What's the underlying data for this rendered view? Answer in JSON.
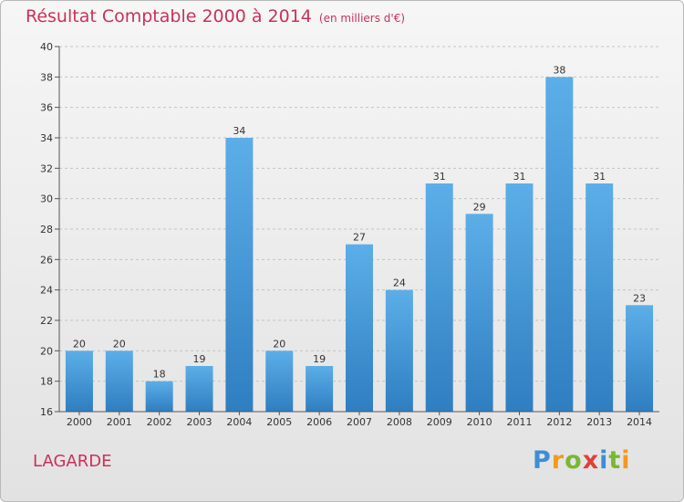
{
  "title": "Résultat Comptable 2000 à 2014",
  "subtitle": "(en milliers d'€)",
  "commune": "LAGARDE",
  "logo": {
    "letters": [
      "P",
      "r",
      "o",
      "x",
      "i",
      "t",
      "i"
    ],
    "colors": [
      "#3a8fd6",
      "#f29a1f",
      "#7ab830",
      "#e0403a",
      "#3a8fd6",
      "#7ab830",
      "#f29a1f"
    ]
  },
  "chart_data": {
    "type": "bar",
    "categories": [
      "2000",
      "2001",
      "2002",
      "2003",
      "2004",
      "2005",
      "2006",
      "2007",
      "2008",
      "2009",
      "2010",
      "2011",
      "2012",
      "2013",
      "2014"
    ],
    "values": [
      20,
      20,
      18,
      19,
      34,
      20,
      19,
      27,
      24,
      31,
      29,
      31,
      38,
      31,
      23
    ],
    "ylim": [
      16,
      40
    ],
    "yticks": [
      16,
      18,
      20,
      22,
      24,
      26,
      28,
      30,
      32,
      34,
      36,
      38,
      40
    ],
    "grid": true,
    "bar_color_top": "#5caee8",
    "bar_color_bottom": "#2f7ec1"
  }
}
